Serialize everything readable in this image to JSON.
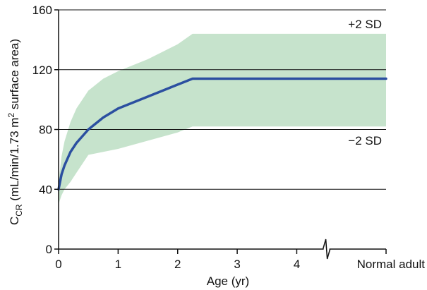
{
  "chart_data": {
    "type": "line",
    "title": "",
    "xlabel": "Age (yr)",
    "ylabel_parts": {
      "main": "C",
      "subscript": "CR",
      "units_prefix": " (mL/min/1.73 m",
      "units_superscript": "2",
      "units_suffix": " surface area)"
    },
    "ylim": [
      0,
      160
    ],
    "xlim": [
      0,
      5.5
    ],
    "grid": true,
    "x_ticks": [
      {
        "value": 0,
        "label": "0"
      },
      {
        "value": 1,
        "label": "1"
      },
      {
        "value": 2,
        "label": "2"
      },
      {
        "value": 3,
        "label": "3"
      },
      {
        "value": 4,
        "label": "4"
      },
      {
        "value": 5.5,
        "label": "Normal adult"
      }
    ],
    "y_ticks": [
      {
        "value": 0,
        "label": "0"
      },
      {
        "value": 40,
        "label": "40"
      },
      {
        "value": 80,
        "label": "80"
      },
      {
        "value": 120,
        "label": "120"
      },
      {
        "value": 160,
        "label": "160"
      }
    ],
    "axis_break": {
      "x": 4.5
    },
    "band_labels": {
      "upper": "+2 SD",
      "lower": "−2 SD"
    },
    "colors": {
      "mean_line": "#2b4fa0",
      "band_fill": "#c6e3cc",
      "axis": "#111111",
      "grid": "#111111"
    },
    "mean": {
      "x": [
        0,
        0.05,
        0.1,
        0.2,
        0.3,
        0.5,
        0.75,
        1.0,
        1.5,
        2.0,
        2.25,
        5.5
      ],
      "y": [
        40,
        50,
        56,
        65,
        71,
        80,
        88,
        94,
        102,
        110,
        114,
        114
      ]
    },
    "band_upper": {
      "x": [
        0,
        0.05,
        0.1,
        0.2,
        0.3,
        0.5,
        0.75,
        1.0,
        1.5,
        2.0,
        2.25,
        5.5
      ],
      "y": [
        45,
        62,
        72,
        85,
        94,
        106,
        114,
        119,
        127,
        137,
        144,
        144
      ]
    },
    "band_lower": {
      "x": [
        0,
        0.05,
        0.1,
        0.2,
        0.3,
        0.5,
        1.0,
        2.0,
        2.25,
        5.5
      ],
      "y": [
        30,
        36,
        40,
        45,
        51,
        63,
        67,
        78,
        82,
        82
      ]
    }
  }
}
